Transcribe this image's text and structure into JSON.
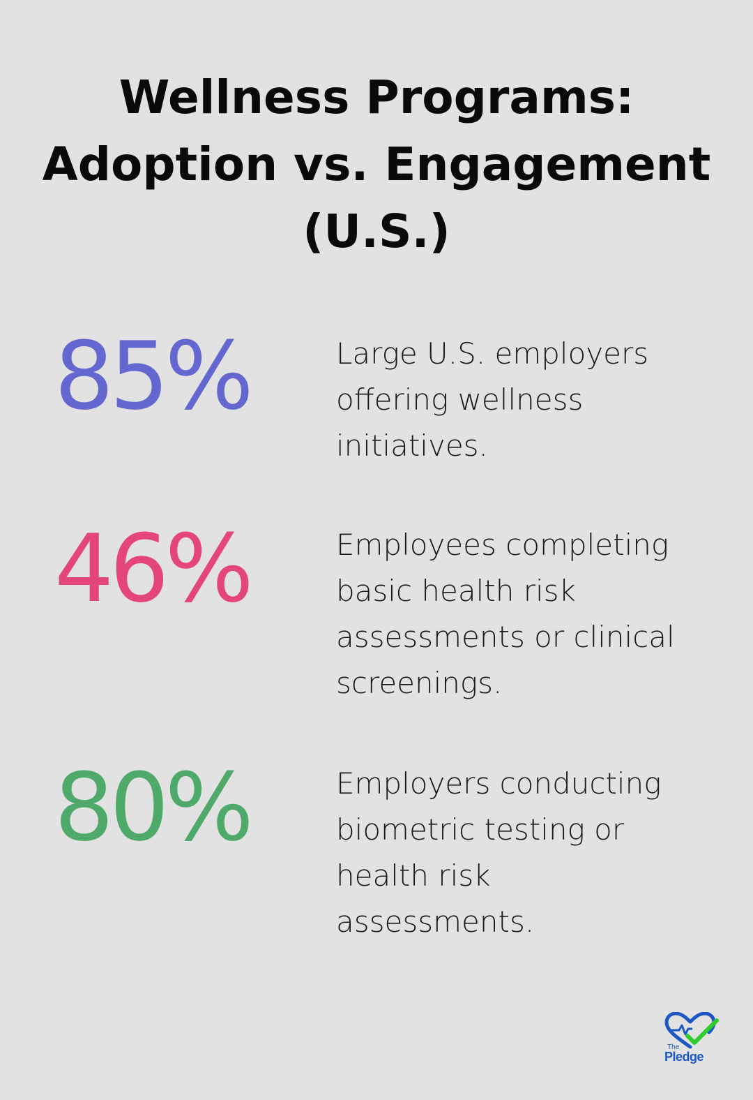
{
  "title": {
    "line1": "Wellness Programs:",
    "line2": "Adoption vs. Engagement",
    "line3": "(U.S.)"
  },
  "stats": [
    {
      "value": "85%",
      "color": "#6467cf",
      "desc": [
        "Large U.S. employers",
        "offering wellness",
        "initiatives."
      ]
    },
    {
      "value": "46%",
      "color": "#e4457b",
      "desc": [
        "Employees completing",
        "basic health risk",
        "assessments or clinical",
        "screenings."
      ]
    },
    {
      "value": "80%",
      "color": "#4fa96a",
      "desc": [
        "Employers conducting",
        "biometric testing or",
        "health risk",
        "assessments."
      ]
    }
  ],
  "logo": {
    "small": "The",
    "name": "Pledge",
    "icon": "heart-check-icon"
  }
}
